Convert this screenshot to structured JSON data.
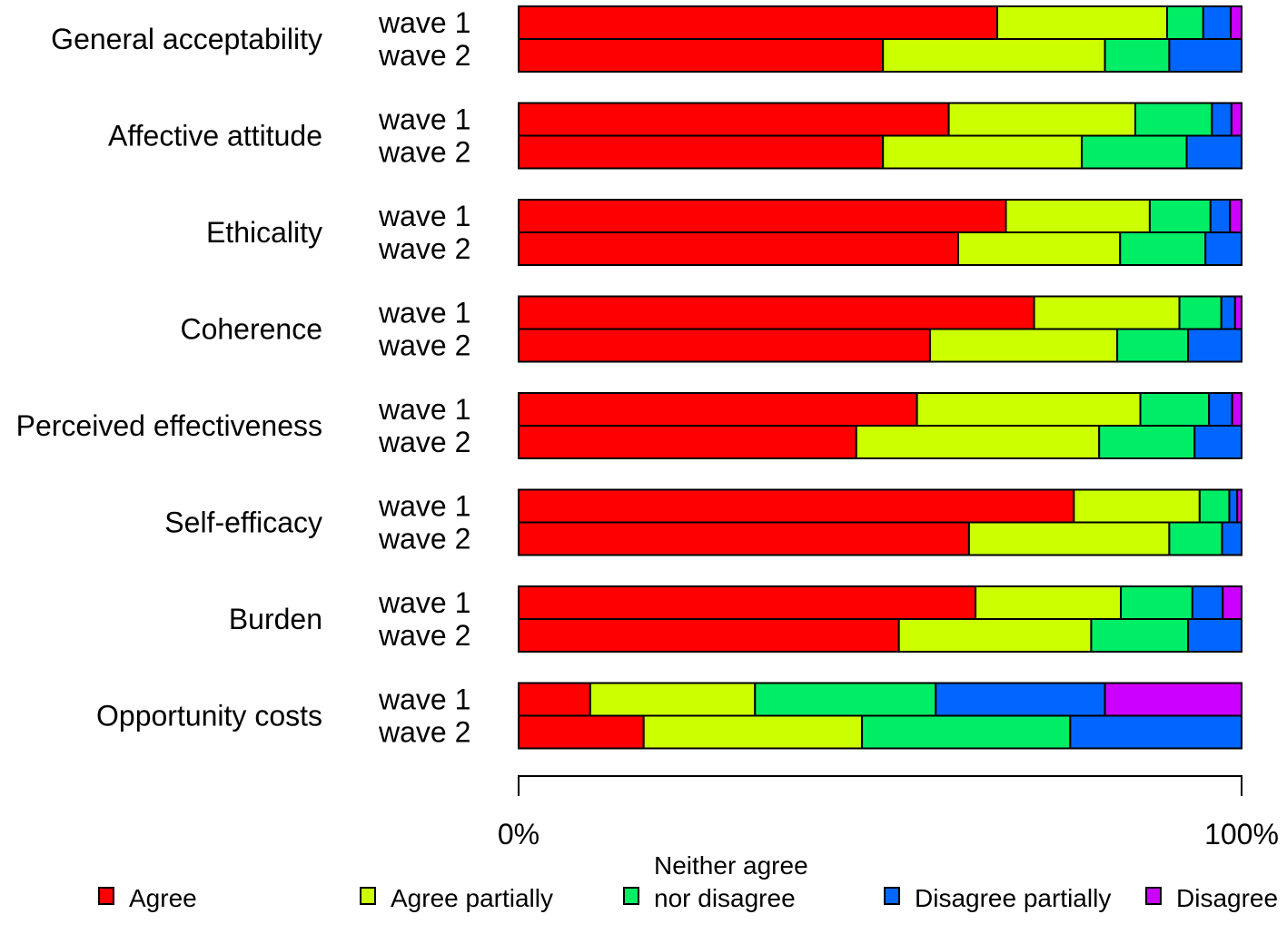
{
  "chart_data": {
    "type": "bar",
    "orientation": "horizontal",
    "stacked": true,
    "percent": true,
    "colors": [
      "#ff0000",
      "#ccff00",
      "#00ee66",
      "#0066ff",
      "#cc00ff"
    ],
    "categories": [
      "General acceptability",
      "Affective attitude",
      "Ethicality",
      "Coherence",
      "Perceived effectiveness",
      "Self-efficacy",
      "Burden",
      "Opportunity costs"
    ],
    "waves": [
      "wave 1",
      "wave 2"
    ],
    "series": [
      {
        "name": "Agree",
        "wave1": [
          66.2,
          59.5,
          67.4,
          71.3,
          55.1,
          76.8,
          63.2,
          9.9
        ],
        "wave2": [
          50.4,
          50.4,
          60.8,
          56.9,
          46.7,
          62.3,
          52.6,
          17.3
        ]
      },
      {
        "name": "Agree partially",
        "wave1": [
          23.5,
          25.8,
          19.9,
          20.1,
          30.9,
          17.4,
          20.1,
          22.8
        ],
        "wave2": [
          30.7,
          27.5,
          22.4,
          25.9,
          33.6,
          27.7,
          26.6,
          30.2
        ]
      },
      {
        "name": "Neither agree nor disagree",
        "wave1": [
          5.0,
          10.6,
          8.4,
          5.8,
          9.5,
          4.1,
          9.9,
          25.0
        ],
        "wave2": [
          8.9,
          14.5,
          11.8,
          9.8,
          13.2,
          7.3,
          13.4,
          28.8
        ]
      },
      {
        "name": "Disagree partially",
        "wave1": [
          3.8,
          2.7,
          2.7,
          1.9,
          3.2,
          1.1,
          4.2,
          23.4
        ],
        "wave2": [
          10.0,
          7.6,
          5.0,
          7.4,
          6.5,
          2.7,
          7.4,
          23.7
        ]
      },
      {
        "name": "Disagree",
        "wave1": [
          1.5,
          1.4,
          1.6,
          0.9,
          1.3,
          0.6,
          2.6,
          18.9
        ],
        "wave2": [
          0,
          0,
          0,
          0,
          0,
          0,
          0,
          0
        ]
      }
    ],
    "x_ticks": [
      "0%",
      "100%"
    ],
    "xlim": [
      0,
      100
    ],
    "legend": {
      "position": "bottom",
      "entries": [
        {
          "lines": [
            "Agree"
          ]
        },
        {
          "lines": [
            "Agree partially"
          ]
        },
        {
          "lines": [
            "Neither agree",
            "nor disagree"
          ]
        },
        {
          "lines": [
            "Disagree partially"
          ]
        },
        {
          "lines": [
            "Disagree"
          ]
        }
      ]
    }
  }
}
